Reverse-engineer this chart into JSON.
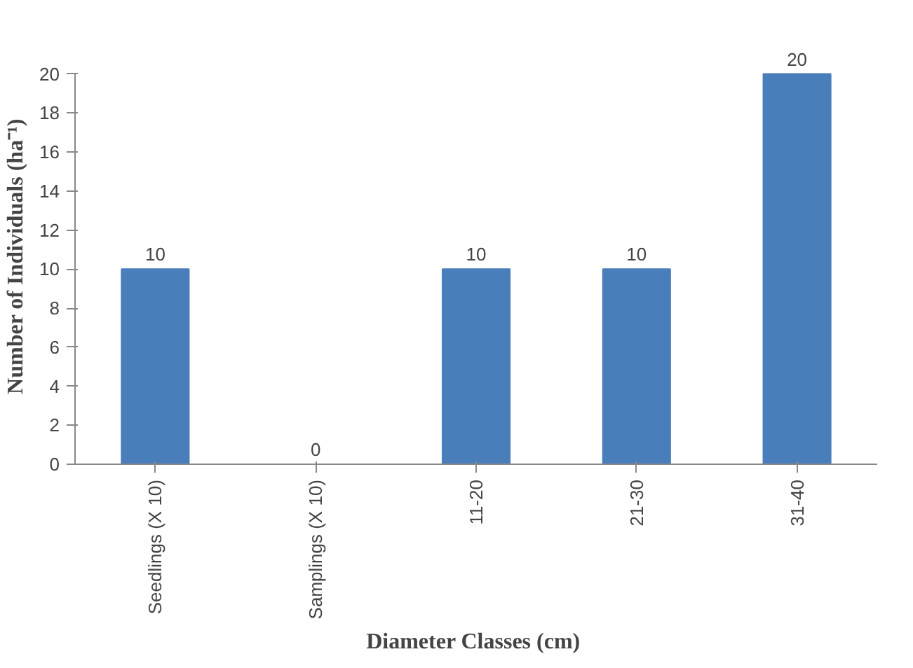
{
  "chart_data": {
    "type": "bar",
    "xlabel": "Diameter  Classes (cm)",
    "ylabel": "Number of Individuals  (ha⁻¹)",
    "categories": [
      "Seedlings (X 10)",
      "Samplings (X 10)",
      "11-20",
      "21-30",
      "31-40"
    ],
    "values": [
      10,
      0,
      10,
      10,
      20
    ],
    "color": "#4a7ebb",
    "ylim": [
      0,
      20
    ],
    "yticks": [
      0,
      2,
      4,
      6,
      8,
      10,
      12,
      14,
      16,
      18,
      20
    ],
    "grid": false,
    "data_labels": true
  }
}
